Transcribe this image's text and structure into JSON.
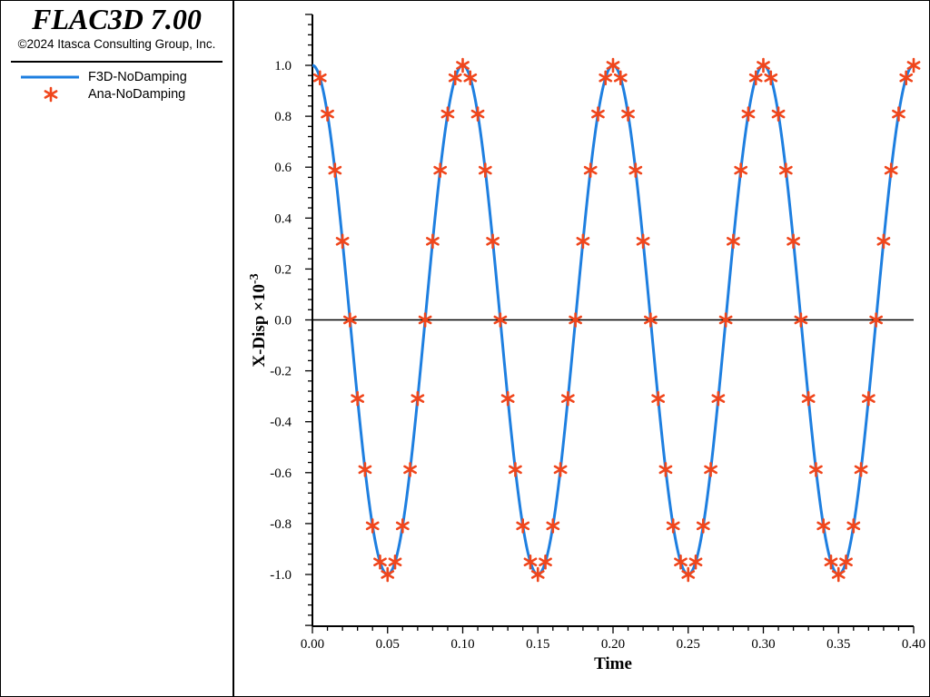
{
  "app": {
    "title": "FLAC3D 7.00",
    "copyright": "©2024 Itasca Consulting Group, Inc."
  },
  "colors": {
    "line": "#1e7fe0",
    "marker": "#f0461c",
    "zero_line": "#000000"
  },
  "legend": {
    "items": [
      {
        "label": "F3D-NoDamping",
        "type": "line"
      },
      {
        "label": "Ana-NoDamping",
        "type": "marker"
      }
    ]
  },
  "chart_data": {
    "type": "line",
    "xlabel": "Time",
    "ylabel": "X-Disp ×10^-3",
    "xlim": [
      0,
      0.4
    ],
    "ylim": [
      -1.2,
      1.2
    ],
    "x_ticks": [
      "0.00",
      "0.05",
      "0.10",
      "0.15",
      "0.20",
      "0.25",
      "0.30",
      "0.35",
      "0.40"
    ],
    "y_ticks": [
      "1.0",
      "0.8",
      "0.6",
      "0.4",
      "0.2",
      "0.0",
      "-0.2",
      "-0.4",
      "-0.6",
      "-0.8",
      "-1.0"
    ],
    "grid": false,
    "legend_position": "left-panel",
    "series": [
      {
        "name": "F3D-NoDamping",
        "style": "line",
        "function": "cos",
        "amplitude": 1.0,
        "period": 0.1
      },
      {
        "name": "Ana-NoDamping",
        "style": "marker",
        "x": [
          0.005,
          0.01,
          0.015,
          0.02,
          0.025,
          0.03,
          0.035,
          0.04,
          0.045,
          0.05,
          0.055,
          0.06,
          0.065,
          0.07,
          0.075,
          0.08,
          0.085,
          0.09,
          0.095,
          0.1,
          0.105,
          0.11,
          0.115,
          0.12,
          0.125,
          0.13,
          0.135,
          0.14,
          0.145,
          0.15,
          0.155,
          0.16,
          0.165,
          0.17,
          0.175,
          0.18,
          0.185,
          0.19,
          0.195,
          0.2,
          0.205,
          0.21,
          0.215,
          0.22,
          0.225,
          0.23,
          0.235,
          0.24,
          0.245,
          0.25,
          0.255,
          0.26,
          0.265,
          0.27,
          0.275,
          0.28,
          0.285,
          0.29,
          0.295,
          0.3,
          0.305,
          0.31,
          0.315,
          0.32,
          0.325,
          0.33,
          0.335,
          0.34,
          0.345,
          0.35,
          0.355,
          0.36,
          0.365,
          0.37,
          0.375,
          0.38,
          0.385,
          0.39,
          0.395,
          0.4
        ],
        "y": [
          0.951,
          0.809,
          0.588,
          0.309,
          0.0,
          -0.309,
          -0.588,
          -0.809,
          -0.951,
          -1.0,
          -0.951,
          -0.809,
          -0.588,
          -0.309,
          0.0,
          0.309,
          0.588,
          0.809,
          0.951,
          1.0,
          0.951,
          0.809,
          0.588,
          0.309,
          0.0,
          -0.309,
          -0.588,
          -0.809,
          -0.951,
          -1.0,
          -0.951,
          -0.809,
          -0.588,
          -0.309,
          0.0,
          0.309,
          0.588,
          0.809,
          0.951,
          1.0,
          0.951,
          0.809,
          0.588,
          0.309,
          0.0,
          -0.309,
          -0.588,
          -0.809,
          -0.951,
          -1.0,
          -0.951,
          -0.809,
          -0.588,
          -0.309,
          0.0,
          0.309,
          0.588,
          0.809,
          0.951,
          1.0,
          0.951,
          0.809,
          0.588,
          0.309,
          0.0,
          -0.309,
          -0.588,
          -0.809,
          -0.951,
          -1.0,
          -0.951,
          -0.809,
          -0.588,
          -0.309,
          0.0,
          0.309,
          0.588,
          0.809,
          0.951,
          1.0
        ]
      }
    ]
  }
}
